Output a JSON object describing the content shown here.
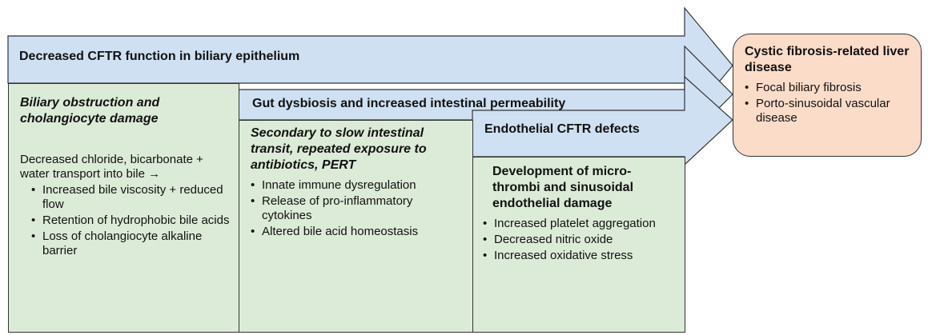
{
  "bars": {
    "bar1": "Decreased CFTR function in biliary epithelium",
    "bar2": "Gut dysbiosis and increased intestinal permeability",
    "bar3": "Endothelial CFTR defects"
  },
  "col1": {
    "heading": "Biliary obstruction and cholangiocyte damage",
    "intro": "Decreased chloride, bicarbonate + water transport into bile →",
    "items": [
      "Increased bile viscosity + reduced flow",
      "Retention of hydrophobic bile acids",
      "Loss of cholangiocyte alkaline barrier"
    ]
  },
  "col2": {
    "heading": "Secondary to slow intestinal transit, repeated exposure to antibiotics, PERT",
    "items": [
      "Innate immune dysregulation",
      "Release of pro-inflammatory cytokines",
      "Altered bile acid homeostasis"
    ]
  },
  "col3": {
    "heading": "Development of micro-thrombi and sinusoidal endothelial damage",
    "items": [
      "Increased platelet aggregation",
      "Decreased nitric oxide",
      "Increased oxidative stress"
    ]
  },
  "outcome": {
    "title": "Cystic fibrosis-related liver disease",
    "items": [
      "Focal biliary fibrosis",
      "Porto-sinusoidal vascular disease"
    ]
  },
  "colors": {
    "arrow_fill": "#cfe0f3",
    "box_fill": "#dcebd7",
    "outcome_fill": "#fbdcc9",
    "stroke": "#333333"
  }
}
